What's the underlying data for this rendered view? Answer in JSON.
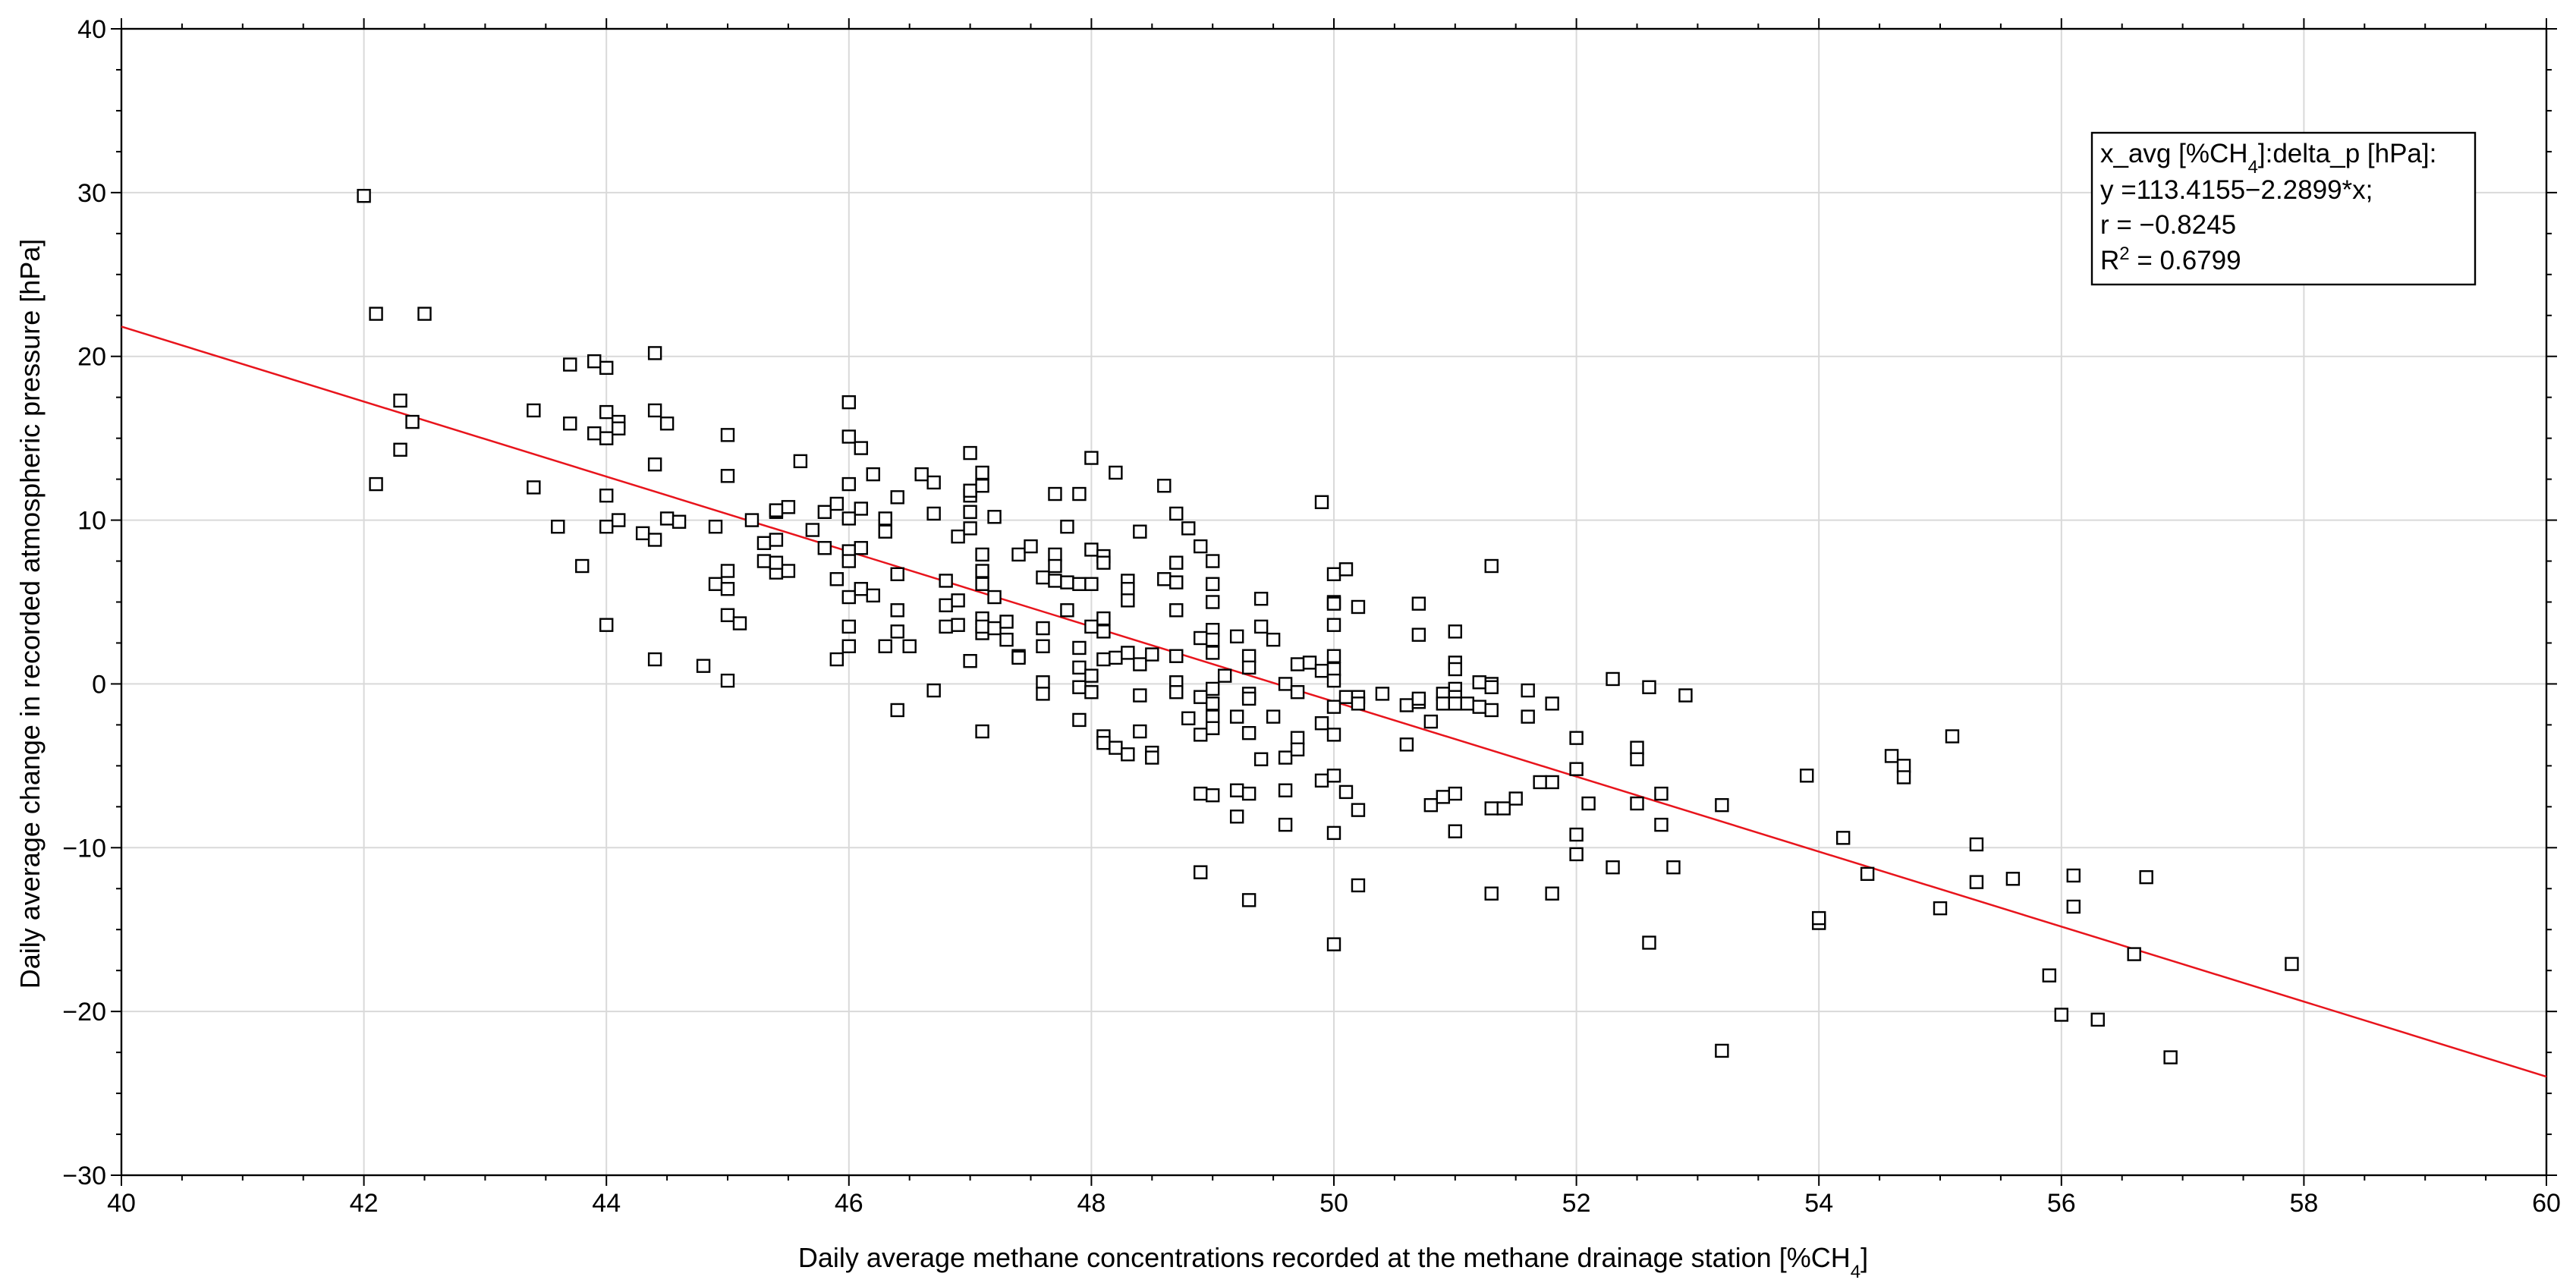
{
  "chart_data": {
    "type": "scatter",
    "title": "",
    "xlabel": "Daily average methane concentrations recorded at the methane drainage station [%CH",
    "xlabel_sub": "4",
    "xlabel_end": "]",
    "ylabel": "Daily average change in recorded atmospheric pressure [hPa]",
    "xlim": [
      40,
      60
    ],
    "ylim": [
      -30,
      40
    ],
    "x_major_ticks": [
      40,
      42,
      44,
      46,
      48,
      50,
      52,
      54,
      56,
      58,
      60
    ],
    "y_major_ticks": [
      -30,
      -20,
      -10,
      0,
      10,
      20,
      30,
      40
    ],
    "x_tick_labels": [
      "40",
      "42",
      "44",
      "46",
      "48",
      "50",
      "52",
      "54",
      "56",
      "58",
      "60"
    ],
    "y_tick_labels": [
      "−30",
      "−20",
      "−10",
      "0",
      "10",
      "20",
      "30",
      "40"
    ],
    "grid": true,
    "regression": {
      "intercept": 113.4155,
      "slope": -2.2899,
      "color": "#e8141c"
    },
    "legend": {
      "position": "top-right",
      "line1_a": "x_avg [%CH",
      "line1_sub": "4",
      "line1_b": "]:delta_p [hPa]:",
      "line2": "y =113.4155−2.2899*x;",
      "line3": "r = −0.8245",
      "line4_a": "R",
      "line4_sup": "2",
      "line4_b": " = 0.6799"
    },
    "points": [
      [
        42.0,
        29.8
      ],
      [
        42.1,
        22.6
      ],
      [
        42.5,
        22.6
      ],
      [
        42.1,
        12.2
      ],
      [
        42.4,
        16.0
      ],
      [
        42.3,
        17.3
      ],
      [
        42.3,
        14.3
      ],
      [
        43.4,
        16.7
      ],
      [
        43.4,
        12.0
      ],
      [
        43.6,
        9.6
      ],
      [
        43.7,
        15.9
      ],
      [
        43.7,
        19.5
      ],
      [
        43.9,
        19.7
      ],
      [
        43.9,
        15.3
      ],
      [
        43.8,
        7.2
      ],
      [
        44.0,
        19.3
      ],
      [
        44.0,
        16.6
      ],
      [
        44.0,
        15.0
      ],
      [
        44.0,
        11.5
      ],
      [
        44.0,
        9.6
      ],
      [
        44.1,
        16.0
      ],
      [
        44.1,
        15.6
      ],
      [
        44.1,
        10.0
      ],
      [
        44.0,
        3.6
      ],
      [
        44.3,
        9.2
      ],
      [
        44.4,
        8.8
      ],
      [
        44.4,
        1.5
      ],
      [
        44.4,
        20.2
      ],
      [
        44.4,
        16.7
      ],
      [
        44.5,
        15.9
      ],
      [
        44.4,
        13.4
      ],
      [
        44.5,
        10.1
      ],
      [
        44.6,
        9.9
      ],
      [
        44.8,
        1.1
      ],
      [
        44.9,
        9.6
      ],
      [
        44.9,
        6.1
      ],
      [
        45.0,
        15.2
      ],
      [
        45.0,
        12.7
      ],
      [
        45.0,
        5.8
      ],
      [
        45.0,
        4.2
      ],
      [
        45.0,
        0.2
      ],
      [
        45.1,
        3.7
      ],
      [
        45.0,
        6.9
      ],
      [
        45.2,
        10.0
      ],
      [
        45.3,
        8.6
      ],
      [
        45.3,
        7.5
      ],
      [
        45.4,
        6.8
      ],
      [
        45.4,
        8.8
      ],
      [
        45.4,
        10.5
      ],
      [
        45.5,
        10.8
      ],
      [
        45.5,
        6.9
      ],
      [
        45.4,
        7.4
      ],
      [
        45.4,
        10.6
      ],
      [
        45.6,
        13.6
      ],
      [
        45.7,
        9.4
      ],
      [
        45.8,
        8.3
      ],
      [
        45.8,
        10.5
      ],
      [
        45.9,
        6.4
      ],
      [
        45.9,
        1.5
      ],
      [
        45.9,
        11.0
      ],
      [
        46.0,
        17.2
      ],
      [
        46.0,
        15.1
      ],
      [
        46.0,
        12.2
      ],
      [
        46.0,
        10.1
      ],
      [
        46.0,
        8.1
      ],
      [
        46.1,
        8.3
      ],
      [
        46.0,
        7.5
      ],
      [
        46.0,
        5.3
      ],
      [
        46.1,
        5.8
      ],
      [
        46.0,
        3.5
      ],
      [
        46.0,
        2.3
      ],
      [
        46.1,
        14.4
      ],
      [
        46.1,
        10.7
      ],
      [
        46.2,
        12.8
      ],
      [
        46.2,
        5.4
      ],
      [
        46.3,
        10.1
      ],
      [
        46.3,
        9.3
      ],
      [
        46.3,
        2.3
      ],
      [
        46.4,
        11.4
      ],
      [
        46.4,
        6.7
      ],
      [
        46.4,
        4.5
      ],
      [
        46.4,
        3.2
      ],
      [
        46.4,
        -1.6
      ],
      [
        46.5,
        2.3
      ],
      [
        46.6,
        12.8
      ],
      [
        46.7,
        12.3
      ],
      [
        46.7,
        10.4
      ],
      [
        46.7,
        -0.4
      ],
      [
        46.8,
        6.3
      ],
      [
        46.8,
        4.8
      ],
      [
        46.8,
        3.5
      ],
      [
        46.9,
        5.1
      ],
      [
        46.9,
        3.6
      ],
      [
        47.0,
        14.1
      ],
      [
        47.0,
        11.5
      ],
      [
        47.0,
        11.8
      ],
      [
        46.9,
        9.0
      ],
      [
        47.0,
        10.5
      ],
      [
        47.0,
        9.5
      ],
      [
        47.1,
        12.9
      ],
      [
        47.1,
        12.1
      ],
      [
        47.1,
        7.9
      ],
      [
        47.1,
        6.9
      ],
      [
        47.1,
        6.1
      ],
      [
        47.1,
        4.0
      ],
      [
        47.1,
        3.1
      ],
      [
        47.1,
        3.5
      ],
      [
        47.0,
        1.4
      ],
      [
        47.1,
        -2.9
      ],
      [
        47.2,
        5.3
      ],
      [
        47.2,
        3.4
      ],
      [
        47.2,
        10.2
      ],
      [
        47.3,
        3.8
      ],
      [
        47.3,
        2.7
      ],
      [
        47.4,
        1.7
      ],
      [
        47.4,
        1.6
      ],
      [
        47.4,
        7.9
      ],
      [
        47.5,
        8.4
      ],
      [
        47.6,
        6.5
      ],
      [
        47.6,
        3.4
      ],
      [
        47.6,
        2.3
      ],
      [
        47.6,
        0.1
      ],
      [
        47.6,
        -0.6
      ],
      [
        47.7,
        11.6
      ],
      [
        47.7,
        7.9
      ],
      [
        47.7,
        7.2
      ],
      [
        47.7,
        6.3
      ],
      [
        47.8,
        9.6
      ],
      [
        47.8,
        4.5
      ],
      [
        47.8,
        6.2
      ],
      [
        47.9,
        6.1
      ],
      [
        47.9,
        2.2
      ],
      [
        47.9,
        1.0
      ],
      [
        47.9,
        -0.2
      ],
      [
        47.9,
        -2.2
      ],
      [
        48.0,
        13.8
      ],
      [
        47.9,
        11.6
      ],
      [
        48.0,
        8.2
      ],
      [
        48.0,
        6.1
      ],
      [
        48.0,
        3.5
      ],
      [
        48.0,
        0.5
      ],
      [
        48.0,
        -0.5
      ],
      [
        48.1,
        7.8
      ],
      [
        48.1,
        7.4
      ],
      [
        48.1,
        4.0
      ],
      [
        48.1,
        3.2
      ],
      [
        48.1,
        1.5
      ],
      [
        48.1,
        -3.2
      ],
      [
        48.1,
        -3.6
      ],
      [
        48.2,
        12.9
      ],
      [
        48.2,
        1.6
      ],
      [
        48.2,
        -3.9
      ],
      [
        48.3,
        6.3
      ],
      [
        48.3,
        5.8
      ],
      [
        48.3,
        5.1
      ],
      [
        48.3,
        -4.3
      ],
      [
        48.3,
        1.9
      ],
      [
        48.4,
        1.2
      ],
      [
        48.4,
        -0.7
      ],
      [
        48.4,
        -2.9
      ],
      [
        48.4,
        9.3
      ],
      [
        48.5,
        -4.2
      ],
      [
        48.5,
        -4.5
      ],
      [
        48.6,
        6.4
      ],
      [
        48.6,
        12.1
      ],
      [
        48.5,
        1.8
      ],
      [
        48.7,
        10.4
      ],
      [
        48.7,
        7.4
      ],
      [
        48.7,
        6.2
      ],
      [
        48.7,
        4.5
      ],
      [
        48.7,
        1.7
      ],
      [
        48.7,
        0.1
      ],
      [
        48.7,
        -0.5
      ],
      [
        48.8,
        9.5
      ],
      [
        48.9,
        8.4
      ],
      [
        48.8,
        -2.1
      ],
      [
        48.9,
        -3.1
      ],
      [
        48.9,
        -6.7
      ],
      [
        48.9,
        -11.5
      ],
      [
        48.9,
        2.8
      ],
      [
        48.9,
        -0.8
      ],
      [
        49.0,
        7.5
      ],
      [
        49.0,
        6.1
      ],
      [
        49.0,
        5.0
      ],
      [
        49.0,
        3.3
      ],
      [
        49.0,
        2.7
      ],
      [
        49.0,
        1.9
      ],
      [
        49.0,
        -0.3
      ],
      [
        49.0,
        -1.2
      ],
      [
        49.0,
        -2.0
      ],
      [
        49.0,
        -2.7
      ],
      [
        49.0,
        -6.8
      ],
      [
        49.1,
        0.5
      ],
      [
        49.2,
        -2.0
      ],
      [
        49.2,
        -6.5
      ],
      [
        49.2,
        -8.1
      ],
      [
        49.2,
        2.9
      ],
      [
        49.3,
        1.7
      ],
      [
        49.3,
        1.0
      ],
      [
        49.3,
        -0.6
      ],
      [
        49.3,
        -0.9
      ],
      [
        49.3,
        -3.0
      ],
      [
        49.3,
        -6.7
      ],
      [
        49.3,
        -13.2
      ],
      [
        49.4,
        5.2
      ],
      [
        49.4,
        3.5
      ],
      [
        49.4,
        -4.6
      ],
      [
        49.5,
        2.7
      ],
      [
        49.5,
        -2.0
      ],
      [
        49.6,
        0.0
      ],
      [
        49.6,
        -4.5
      ],
      [
        49.6,
        -8.6
      ],
      [
        49.6,
        -6.5
      ],
      [
        49.7,
        1.2
      ],
      [
        49.7,
        -0.5
      ],
      [
        49.7,
        -3.3
      ],
      [
        49.7,
        -4.0
      ],
      [
        49.8,
        1.3
      ],
      [
        49.9,
        11.1
      ],
      [
        49.9,
        0.8
      ],
      [
        49.9,
        -2.4
      ],
      [
        49.9,
        -5.9
      ],
      [
        50.0,
        6.7
      ],
      [
        50.0,
        5.0
      ],
      [
        50.0,
        4.9
      ],
      [
        50.0,
        3.6
      ],
      [
        50.0,
        1.7
      ],
      [
        50.0,
        0.9
      ],
      [
        50.0,
        0.2
      ],
      [
        50.0,
        -1.4
      ],
      [
        50.0,
        -3.1
      ],
      [
        50.0,
        -5.6
      ],
      [
        50.0,
        -9.1
      ],
      [
        50.0,
        -15.9
      ],
      [
        50.1,
        7.0
      ],
      [
        50.1,
        -0.8
      ],
      [
        50.2,
        -0.8
      ],
      [
        50.2,
        4.7
      ],
      [
        50.2,
        -1.2
      ],
      [
        50.1,
        -6.6
      ],
      [
        50.2,
        -7.7
      ],
      [
        50.2,
        -12.3
      ],
      [
        50.4,
        -0.6
      ],
      [
        50.6,
        -3.7
      ],
      [
        50.6,
        -1.3
      ],
      [
        50.7,
        4.9
      ],
      [
        50.7,
        3.0
      ],
      [
        50.7,
        -1.1
      ],
      [
        50.7,
        -0.9
      ],
      [
        50.8,
        -2.3
      ],
      [
        50.8,
        -7.4
      ],
      [
        50.9,
        -0.6
      ],
      [
        50.9,
        -1.2
      ],
      [
        50.9,
        -6.9
      ],
      [
        51.0,
        3.2
      ],
      [
        51.0,
        -6.7
      ],
      [
        51.0,
        1.3
      ],
      [
        51.0,
        0.9
      ],
      [
        51.0,
        -0.3
      ],
      [
        51.0,
        -0.8
      ],
      [
        51.0,
        -1.2
      ],
      [
        51.0,
        -9.0
      ],
      [
        51.1,
        -1.2
      ],
      [
        51.2,
        0.1
      ],
      [
        51.2,
        -1.4
      ],
      [
        51.3,
        7.2
      ],
      [
        51.3,
        0.0
      ],
      [
        51.3,
        -0.2
      ],
      [
        51.3,
        -1.6
      ],
      [
        51.3,
        -7.6
      ],
      [
        51.3,
        -12.8
      ],
      [
        51.4,
        -7.6
      ],
      [
        51.5,
        -7.0
      ],
      [
        51.6,
        -2.0
      ],
      [
        51.6,
        -0.4
      ],
      [
        51.7,
        -6.0
      ],
      [
        51.8,
        -6.0
      ],
      [
        51.8,
        -12.8
      ],
      [
        51.8,
        -1.2
      ],
      [
        52.0,
        -3.3
      ],
      [
        52.0,
        -5.2
      ],
      [
        52.1,
        -7.3
      ],
      [
        52.0,
        -9.2
      ],
      [
        52.0,
        -10.4
      ],
      [
        52.3,
        0.3
      ],
      [
        52.3,
        -11.2
      ],
      [
        52.5,
        -3.9
      ],
      [
        52.5,
        -4.6
      ],
      [
        52.5,
        -7.3
      ],
      [
        52.6,
        -0.2
      ],
      [
        52.6,
        -15.8
      ],
      [
        52.7,
        -6.7
      ],
      [
        52.7,
        -8.6
      ],
      [
        52.8,
        -11.2
      ],
      [
        52.9,
        -0.7
      ],
      [
        53.2,
        -7.4
      ],
      [
        53.2,
        -22.4
      ],
      [
        53.9,
        -5.6
      ],
      [
        54.0,
        -14.5
      ],
      [
        54.0,
        -14.6
      ],
      [
        54.0,
        -14.3
      ],
      [
        54.2,
        -9.4
      ],
      [
        54.4,
        -11.6
      ],
      [
        54.6,
        -4.4
      ],
      [
        54.7,
        -5.0
      ],
      [
        54.7,
        -5.7
      ],
      [
        55.1,
        -3.2
      ],
      [
        55.0,
        -13.7
      ],
      [
        55.3,
        -9.8
      ],
      [
        55.3,
        -12.1
      ],
      [
        55.6,
        -11.9
      ],
      [
        55.9,
        -17.8
      ],
      [
        56.0,
        -20.2
      ],
      [
        56.1,
        -11.7
      ],
      [
        56.1,
        -13.6
      ],
      [
        56.3,
        -20.5
      ],
      [
        56.6,
        -16.5
      ],
      [
        56.7,
        -11.8
      ],
      [
        56.9,
        -22.8
      ],
      [
        57.9,
        -17.1
      ]
    ]
  }
}
